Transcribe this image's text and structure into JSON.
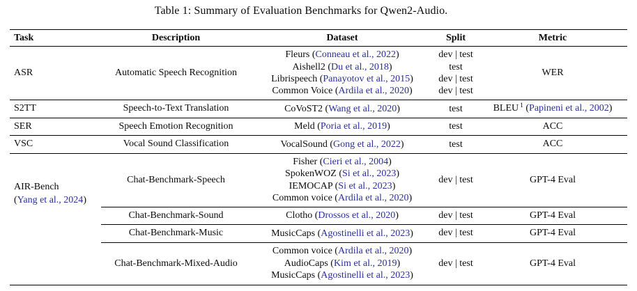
{
  "table": {
    "caption": "Table 1: Summary of Evaluation Benchmarks for Qwen2-Audio.",
    "columns": [
      "Task",
      "Description",
      "Dataset",
      "Split",
      "Metric"
    ],
    "colors": {
      "citation_link": "#2b2f99",
      "text": "#0b0b0b",
      "rule": "#000000"
    },
    "rows": [
      {
        "task": {
          "name": "ASR"
        },
        "description": "Automatic Speech Recognition",
        "datasets": [
          {
            "name": "Fleurs",
            "citation": "Conneau et al., 2022"
          },
          {
            "name": "Aishell2",
            "citation": "Du et al., 2018"
          },
          {
            "name": "Librispeech",
            "citation": "Panayotov et al., 2015"
          },
          {
            "name": "Common Voice",
            "citation": "Ardila et al., 2020"
          }
        ],
        "splits": [
          "dev | test",
          "test",
          "dev | test",
          "dev | test"
        ],
        "metric": {
          "name": "WER"
        }
      },
      {
        "task": {
          "name": "S2TT"
        },
        "description": "Speech-to-Text Translation",
        "datasets": [
          {
            "name": "CoVoST2",
            "citation": "Wang et al., 2020"
          }
        ],
        "splits": [
          "test"
        ],
        "metric": {
          "name": "BLEU",
          "sup": "1",
          "citation": "Papineni et al., 2002"
        }
      },
      {
        "task": {
          "name": "SER"
        },
        "description": "Speech Emotion Recognition",
        "datasets": [
          {
            "name": "Meld",
            "citation": "Poria et al., 2019"
          }
        ],
        "splits": [
          "test"
        ],
        "metric": {
          "name": "ACC"
        }
      },
      {
        "task": {
          "name": "VSC"
        },
        "description": "Vocal Sound Classification",
        "datasets": [
          {
            "name": "VocalSound",
            "citation": "Gong et al., 2022"
          }
        ],
        "splits": [
          "test"
        ],
        "metric": {
          "name": "ACC"
        }
      }
    ],
    "airbench": {
      "task": {
        "name": "AIR-Bench",
        "citation": "Yang et al., 2024"
      },
      "subrows": [
        {
          "description": "Chat-Benchmark-Speech",
          "datasets": [
            {
              "name": "Fisher",
              "citation": "Cieri et al., 2004"
            },
            {
              "name": "SpokenWOZ",
              "citation": "Si et al., 2023"
            },
            {
              "name": "IEMOCAP",
              "citation": "Si et al., 2023"
            },
            {
              "name": "Common voice",
              "citation": "Ardila et al., 2020"
            }
          ],
          "split": "dev | test",
          "metric": {
            "name": "GPT-4 Eval"
          }
        },
        {
          "description": "Chat-Benchmark-Sound",
          "datasets": [
            {
              "name": "Clotho",
              "citation": "Drossos et al., 2020"
            }
          ],
          "split": "dev | test",
          "metric": {
            "name": "GPT-4 Eval"
          }
        },
        {
          "description": "Chat-Benchmark-Music",
          "datasets": [
            {
              "name": "MusicCaps",
              "citation": "Agostinelli et al., 2023"
            }
          ],
          "split": "dev | test",
          "metric": {
            "name": "GPT-4 Eval"
          }
        },
        {
          "description": "Chat-Benchmark-Mixed-Audio",
          "datasets": [
            {
              "name": "Common voice",
              "citation": "Ardila et al., 2020"
            },
            {
              "name": "AudioCaps",
              "citation": "Kim et al., 2019"
            },
            {
              "name": "MusicCaps",
              "citation": "Agostinelli et al., 2023"
            }
          ],
          "split": "dev | test",
          "metric": {
            "name": "GPT-4 Eval"
          }
        }
      ]
    }
  }
}
